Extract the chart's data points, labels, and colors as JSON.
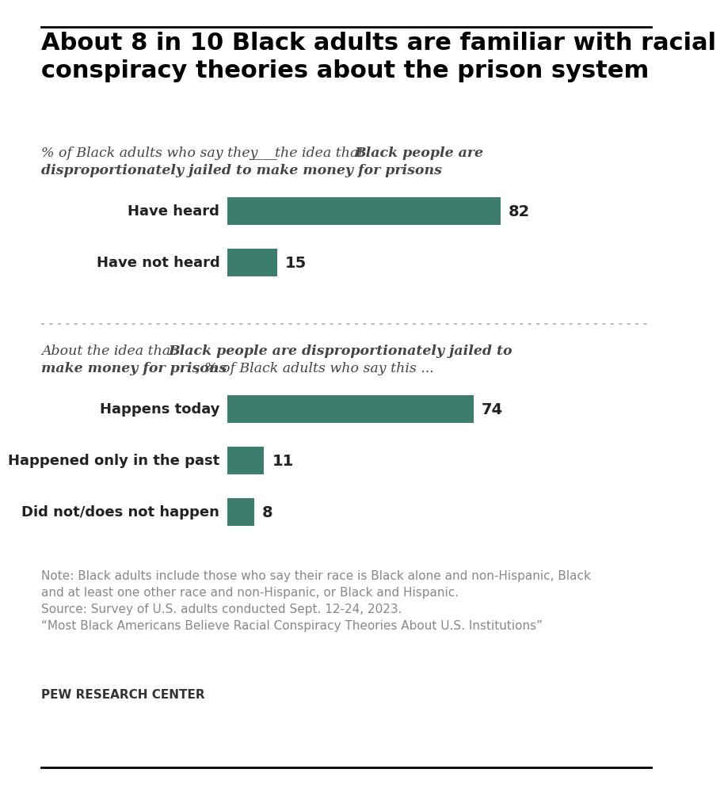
{
  "title": "About 8 in 10 Black adults are familiar with racial\nconspiracy theories about the prison system",
  "bar_color": "#3d7d6e",
  "section1_subtitle_plain": "% of Black adults who say they ___ the idea that ",
  "section1_subtitle_bold": "Black people are\ndisproportionately jailed to make money for prisons",
  "section1_categories": [
    "Have heard",
    "Have not heard"
  ],
  "section1_values": [
    82,
    15
  ],
  "section2_subtitle_bold": "Black people are disproportionately jailed to\nmake money for prisons",
  "section2_subtitle_plain": ", % of Black adults who say this ...",
  "section2_subtitle_prefix": "About the idea that ",
  "section2_categories": [
    "Happens today",
    "Happened only in the past",
    "Did not/does not happen"
  ],
  "section2_values": [
    74,
    11,
    8
  ],
  "note_text": "Note: Black adults include those who say their race is Black alone and non-Hispanic, Black\nand at least one other race and non-Hispanic, or Black and Hispanic.\nSource: Survey of U.S. adults conducted Sept. 12-24, 2023.\n“Most Black Americans Believe Racial Conspiracy Theories About U.S. Institutions”",
  "source_label": "PEW RESEARCH CENTER",
  "bg_color": "#ffffff",
  "note_color": "#888888",
  "label_color": "#000000",
  "title_color": "#000000",
  "xlim": [
    0,
    100
  ]
}
